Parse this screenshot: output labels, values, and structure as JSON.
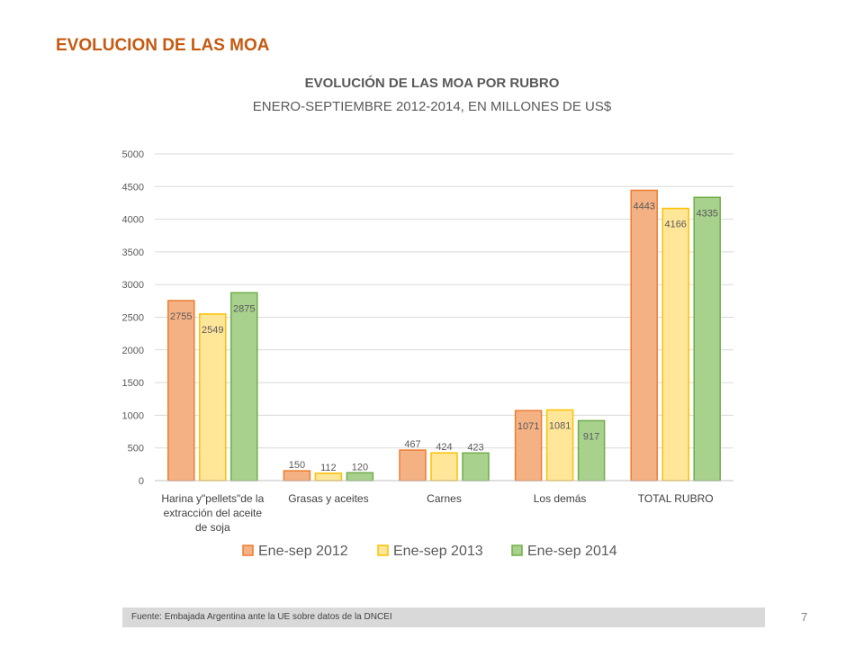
{
  "slide": {
    "title": "EVOLUCION DE LAS MOA",
    "page_number": "7",
    "footer": "Fuente: Embajada  Argentina ante la UE sobre datos de la DNCEI"
  },
  "chart_data": {
    "type": "bar",
    "title": "EVOLUCIÓN DE LAS MOA POR RUBRO",
    "subtitle": "ENERO-SEPTIEMBRE 2012-2014, EN MILLONES DE US$",
    "categories": [
      [
        "Harina y\"pellets\"de la",
        "extracción del aceite",
        "de soja"
      ],
      [
        "Grasas y aceites"
      ],
      [
        "Carnes"
      ],
      [
        "Los demás"
      ],
      [
        "TOTAL RUBRO"
      ]
    ],
    "series": [
      {
        "name": "Ene-sep 2012",
        "values": [
          2755,
          150,
          467,
          1071,
          4443
        ],
        "color": "#f4b183",
        "stroke": "#ed7d31"
      },
      {
        "name": "Ene-sep 2013",
        "values": [
          2549,
          112,
          424,
          1081,
          4166
        ],
        "color": "#ffe699",
        "stroke": "#ffc000"
      },
      {
        "name": "Ene-sep 2014",
        "values": [
          2875,
          120,
          423,
          917,
          4335
        ],
        "color": "#a9d18e",
        "stroke": "#70ad47"
      }
    ],
    "ylim": [
      0,
      5000
    ],
    "yticks": [
      0,
      500,
      1000,
      1500,
      2000,
      2500,
      3000,
      3500,
      4000,
      4500,
      5000
    ],
    "grid": true,
    "legend": "bottom"
  }
}
